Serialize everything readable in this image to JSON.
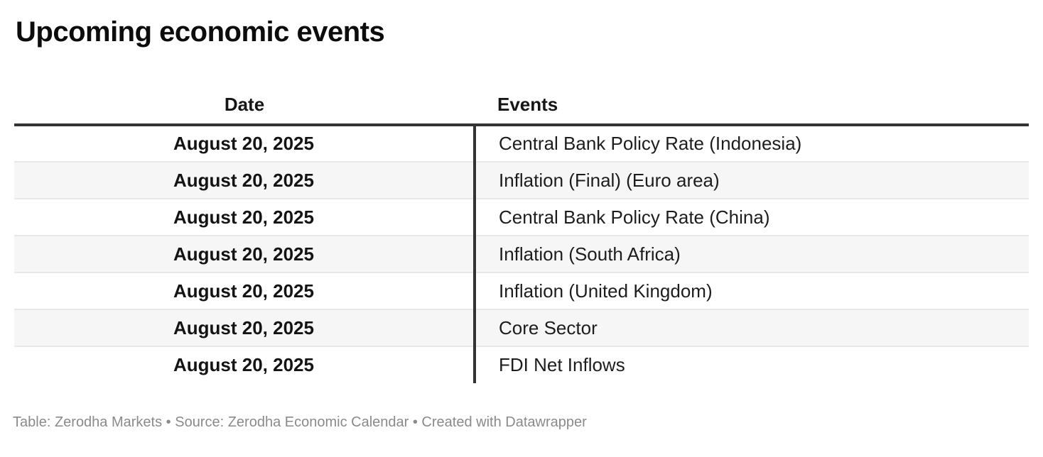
{
  "chart_data": {
    "type": "table",
    "title": "Upcoming economic events",
    "columns": [
      "Date",
      "Events"
    ],
    "rows": [
      [
        "August 20, 2025",
        "Central Bank Policy Rate (Indonesia)"
      ],
      [
        "August 20, 2025",
        "Inflation (Final) (Euro area)"
      ],
      [
        "August 20, 2025",
        "Central Bank Policy Rate (China)"
      ],
      [
        "August 20, 2025",
        "Inflation (South Africa)"
      ],
      [
        "August 20, 2025",
        "Inflation (United Kingdom)"
      ],
      [
        "August 20, 2025",
        "Core Sector"
      ],
      [
        "August 20, 2025",
        "FDI Net Inflows"
      ]
    ],
    "layout": {
      "date_column_align": "center",
      "events_column_align": "left",
      "striped_rows": true
    }
  },
  "footer": {
    "parts": [
      {
        "text": "Table: ",
        "link": false
      },
      {
        "text": "Zerodha Markets",
        "link": true
      },
      {
        "text": " • Source: ",
        "link": false
      },
      {
        "text": "Zerodha Economic Calendar",
        "link": true
      },
      {
        "text": " • Created with ",
        "link": false
      },
      {
        "text": "Datawrapper",
        "link": true
      }
    ]
  },
  "colors": {
    "header_border": "#333333",
    "column_divider": "#333333",
    "row_stripe": "#f6f6f6",
    "row_separator": "#e8e8e8",
    "title_text": "#0c0c0c",
    "body_text": "#1d1d1d",
    "footer_text": "#8a8a8a",
    "background": "#ffffff"
  }
}
